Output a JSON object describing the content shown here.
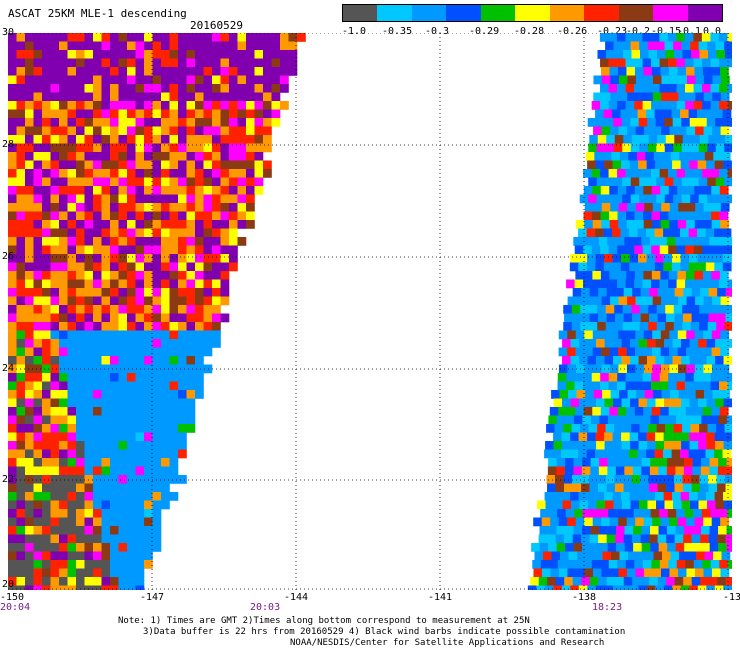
{
  "header": {
    "title": "ASCAT 25KM MLE-1 descending",
    "date": "20160529"
  },
  "colorbar": {
    "colors": [
      "#555555",
      "#00c8ff",
      "#0099ff",
      "#0050ff",
      "#00c000",
      "#ffff00",
      "#ff9900",
      "#ff2200",
      "#8b3a14",
      "#ff00ff",
      "#8000b0"
    ],
    "tick_labels": [
      "-1.0",
      "-0.35",
      "-0.3",
      "-0.29",
      "-0.28",
      "-0.26",
      "-0.23",
      "-0.2",
      "-0.15",
      "-0.1",
      "0.0"
    ]
  },
  "axes": {
    "x_ticks": [
      "-150",
      "-147",
      "-144",
      "-141",
      "-138",
      "-13"
    ],
    "y_ticks": [
      "30",
      "28",
      "26",
      "24",
      "22",
      "20"
    ],
    "time_labels": [
      "20:04",
      "20:03",
      "18:23"
    ]
  },
  "swaths": [
    {
      "name": "west swath",
      "time": "20:04"
    },
    {
      "name": "east swath",
      "time": "18:23"
    }
  ],
  "notes": {
    "line1": "Note: 1) Times are GMT 2)Times along bottom correspond to measurement at 25N",
    "line2": "3)Data buffer is 22 hrs from 20160529 4) Black wind barbs indicate possible contamination",
    "line3": "NOAA/NESDIS/Center for Satellite Applications and Research"
  }
}
